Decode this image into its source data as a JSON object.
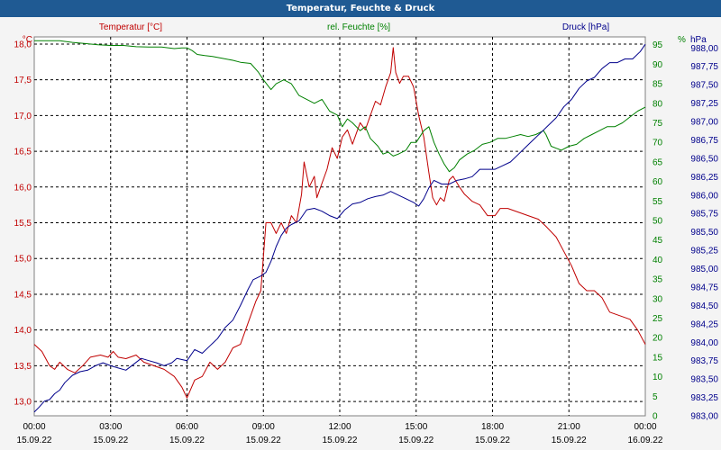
{
  "title": "Temperatur, Feuchte & Druck",
  "chart_data": {
    "type": "line",
    "title": "Temperatur, Feuchte & Druck",
    "x_ticks": [
      {
        "time": "00:00",
        "date": "15.09.22"
      },
      {
        "time": "03:00",
        "date": "15.09.22"
      },
      {
        "time": "06:00",
        "date": "15.09.22"
      },
      {
        "time": "09:00",
        "date": "15.09.22"
      },
      {
        "time": "12:00",
        "date": "15.09.22"
      },
      {
        "time": "15:00",
        "date": "15.09.22"
      },
      {
        "time": "18:00",
        "date": "15.09.22"
      },
      {
        "time": "21:00",
        "date": "15.09.22"
      },
      {
        "time": "00:00",
        "date": "16.09.22"
      }
    ],
    "xlim": [
      0,
      24
    ],
    "axes": {
      "temperature": {
        "unit": "°C",
        "ylim": [
          12.8,
          18.1
        ],
        "ticks": [
          "13,0",
          "13,5",
          "14,0",
          "14,5",
          "15,0",
          "15,5",
          "16,0",
          "16,5",
          "17,0",
          "17,5",
          "18,0"
        ],
        "tick_values": [
          13.0,
          13.5,
          14.0,
          14.5,
          15.0,
          15.5,
          16.0,
          16.5,
          17.0,
          17.5,
          18.0
        ]
      },
      "humidity": {
        "unit": "%",
        "ylim": [
          0,
          97
        ],
        "ticks": [
          "0",
          "5",
          "10",
          "15",
          "20",
          "25",
          "30",
          "35",
          "40",
          "45",
          "50",
          "55",
          "60",
          "65",
          "70",
          "75",
          "80",
          "85",
          "90",
          "95"
        ],
        "tick_values": [
          0,
          5,
          10,
          15,
          20,
          25,
          30,
          35,
          40,
          45,
          50,
          55,
          60,
          65,
          70,
          75,
          80,
          85,
          90,
          95
        ]
      },
      "pressure": {
        "unit": "hPa",
        "ylim": [
          983.0,
          988.15
        ],
        "ticks": [
          "983,00",
          "983,25",
          "983,50",
          "983,75",
          "984,00",
          "984,25",
          "984,50",
          "984,75",
          "985,00",
          "985,25",
          "985,50",
          "985,75",
          "986,00",
          "986,25",
          "986,50",
          "986,75",
          "987,00",
          "987,25",
          "987,50",
          "987,75",
          "988,00"
        ],
        "tick_values": [
          983.0,
          983.25,
          983.5,
          983.75,
          984.0,
          984.25,
          984.5,
          984.75,
          985.0,
          985.25,
          985.5,
          985.75,
          986.0,
          986.25,
          986.5,
          986.75,
          987.0,
          987.25,
          987.5,
          987.75,
          988.0
        ]
      }
    },
    "series": [
      {
        "name": "Temperatur [°C]",
        "axis": "temperature",
        "color": "#c00000",
        "points": [
          [
            0,
            13.8
          ],
          [
            0.3,
            13.7
          ],
          [
            0.6,
            13.5
          ],
          [
            0.8,
            13.45
          ],
          [
            1.0,
            13.55
          ],
          [
            1.3,
            13.45
          ],
          [
            1.6,
            13.4
          ],
          [
            1.9,
            13.5
          ],
          [
            2.2,
            13.62
          ],
          [
            2.6,
            13.65
          ],
          [
            2.9,
            13.62
          ],
          [
            3.1,
            13.7
          ],
          [
            3.3,
            13.62
          ],
          [
            3.6,
            13.6
          ],
          [
            4.0,
            13.65
          ],
          [
            4.3,
            13.55
          ],
          [
            4.7,
            13.5
          ],
          [
            5.1,
            13.45
          ],
          [
            5.5,
            13.35
          ],
          [
            5.8,
            13.2
          ],
          [
            6.0,
            13.05
          ],
          [
            6.3,
            13.3
          ],
          [
            6.6,
            13.35
          ],
          [
            6.9,
            13.55
          ],
          [
            7.2,
            13.45
          ],
          [
            7.5,
            13.55
          ],
          [
            7.8,
            13.75
          ],
          [
            8.1,
            13.8
          ],
          [
            8.4,
            14.1
          ],
          [
            8.7,
            14.4
          ],
          [
            8.9,
            14.55
          ],
          [
            9.1,
            15.5
          ],
          [
            9.3,
            15.5
          ],
          [
            9.5,
            15.35
          ],
          [
            9.7,
            15.5
          ],
          [
            9.9,
            15.35
          ],
          [
            10.1,
            15.6
          ],
          [
            10.3,
            15.5
          ],
          [
            10.5,
            15.9
          ],
          [
            10.6,
            16.35
          ],
          [
            10.8,
            16.0
          ],
          [
            11.0,
            16.15
          ],
          [
            11.1,
            15.85
          ],
          [
            11.3,
            16.05
          ],
          [
            11.5,
            16.25
          ],
          [
            11.7,
            16.55
          ],
          [
            11.9,
            16.4
          ],
          [
            12.1,
            16.7
          ],
          [
            12.3,
            16.8
          ],
          [
            12.5,
            16.6
          ],
          [
            12.8,
            16.9
          ],
          [
            13.0,
            16.8
          ],
          [
            13.2,
            17.0
          ],
          [
            13.4,
            17.2
          ],
          [
            13.6,
            17.15
          ],
          [
            13.8,
            17.4
          ],
          [
            14.0,
            17.6
          ],
          [
            14.1,
            17.95
          ],
          [
            14.2,
            17.6
          ],
          [
            14.35,
            17.45
          ],
          [
            14.5,
            17.55
          ],
          [
            14.7,
            17.55
          ],
          [
            14.9,
            17.4
          ],
          [
            15.1,
            17.0
          ],
          [
            15.3,
            16.7
          ],
          [
            15.5,
            16.2
          ],
          [
            15.65,
            15.85
          ],
          [
            15.8,
            15.75
          ],
          [
            15.95,
            15.85
          ],
          [
            16.1,
            15.8
          ],
          [
            16.3,
            16.1
          ],
          [
            16.45,
            16.15
          ],
          [
            16.7,
            16.0
          ],
          [
            16.9,
            15.9
          ],
          [
            17.2,
            15.8
          ],
          [
            17.5,
            15.75
          ],
          [
            17.8,
            15.6
          ],
          [
            18.1,
            15.6
          ],
          [
            18.3,
            15.7
          ],
          [
            18.6,
            15.7
          ],
          [
            19.0,
            15.65
          ],
          [
            19.4,
            15.6
          ],
          [
            19.8,
            15.55
          ],
          [
            20.1,
            15.45
          ],
          [
            20.5,
            15.3
          ],
          [
            20.8,
            15.1
          ],
          [
            21.1,
            14.9
          ],
          [
            21.4,
            14.65
          ],
          [
            21.7,
            14.55
          ],
          [
            22.0,
            14.55
          ],
          [
            22.3,
            14.45
          ],
          [
            22.6,
            14.25
          ],
          [
            23.0,
            14.2
          ],
          [
            23.4,
            14.15
          ],
          [
            23.7,
            14.0
          ],
          [
            24.0,
            13.8
          ]
        ]
      },
      {
        "name": "rel. Feuchte [%]",
        "axis": "humidity",
        "color": "#008000",
        "points": [
          [
            0,
            96
          ],
          [
            0.5,
            96
          ],
          [
            1.0,
            96
          ],
          [
            1.5,
            95.6
          ],
          [
            2.0,
            95.3
          ],
          [
            2.5,
            95
          ],
          [
            3.0,
            94.8
          ],
          [
            3.5,
            94.8
          ],
          [
            4.0,
            94.5
          ],
          [
            4.5,
            94.4
          ],
          [
            5.0,
            94.4
          ],
          [
            5.5,
            94
          ],
          [
            5.8,
            94.2
          ],
          [
            6.0,
            94.2
          ],
          [
            6.2,
            93.5
          ],
          [
            6.4,
            92.5
          ],
          [
            6.7,
            92.2
          ],
          [
            7.0,
            92
          ],
          [
            7.4,
            91.5
          ],
          [
            7.8,
            91
          ],
          [
            8.1,
            90.5
          ],
          [
            8.5,
            90.2
          ],
          [
            8.8,
            88
          ],
          [
            9.0,
            86
          ],
          [
            9.3,
            83.5
          ],
          [
            9.5,
            85
          ],
          [
            9.8,
            86
          ],
          [
            10.1,
            85
          ],
          [
            10.4,
            82
          ],
          [
            10.7,
            81
          ],
          [
            11.0,
            80
          ],
          [
            11.3,
            81
          ],
          [
            11.6,
            78
          ],
          [
            11.9,
            77
          ],
          [
            12.1,
            74
          ],
          [
            12.3,
            76
          ],
          [
            12.5,
            75
          ],
          [
            12.8,
            73
          ],
          [
            13.0,
            74
          ],
          [
            13.2,
            71
          ],
          [
            13.5,
            69
          ],
          [
            13.7,
            67
          ],
          [
            13.9,
            67.5
          ],
          [
            14.1,
            66.5
          ],
          [
            14.3,
            67
          ],
          [
            14.6,
            68
          ],
          [
            14.8,
            70
          ],
          [
            15.0,
            70
          ],
          [
            15.3,
            73
          ],
          [
            15.5,
            74
          ],
          [
            15.7,
            70
          ],
          [
            15.9,
            67
          ],
          [
            16.1,
            64.5
          ],
          [
            16.3,
            62.5
          ],
          [
            16.5,
            63.5
          ],
          [
            16.7,
            65.5
          ],
          [
            17.0,
            67
          ],
          [
            17.3,
            68
          ],
          [
            17.6,
            69.5
          ],
          [
            17.9,
            70
          ],
          [
            18.2,
            71
          ],
          [
            18.5,
            71
          ],
          [
            18.8,
            71.5
          ],
          [
            19.1,
            72
          ],
          [
            19.4,
            71.5
          ],
          [
            19.7,
            72
          ],
          [
            20.0,
            73
          ],
          [
            20.1,
            72
          ],
          [
            20.3,
            69
          ],
          [
            20.5,
            68.5
          ],
          [
            20.7,
            68
          ],
          [
            21.0,
            69
          ],
          [
            21.3,
            69.5
          ],
          [
            21.6,
            71
          ],
          [
            21.9,
            72
          ],
          [
            22.2,
            73
          ],
          [
            22.5,
            74
          ],
          [
            22.8,
            74
          ],
          [
            23.1,
            75
          ],
          [
            23.4,
            76.5
          ],
          [
            23.7,
            78
          ],
          [
            24.0,
            79
          ]
        ]
      },
      {
        "name": "Druck [hPa]",
        "axis": "pressure",
        "color": "#00008b",
        "points": [
          [
            0,
            983.05
          ],
          [
            0.2,
            983.12
          ],
          [
            0.4,
            983.2
          ],
          [
            0.6,
            983.22
          ],
          [
            0.8,
            983.3
          ],
          [
            1.0,
            983.35
          ],
          [
            1.2,
            983.45
          ],
          [
            1.5,
            983.55
          ],
          [
            1.8,
            983.6
          ],
          [
            2.1,
            983.62
          ],
          [
            2.4,
            983.68
          ],
          [
            2.7,
            983.72
          ],
          [
            3.0,
            983.68
          ],
          [
            3.3,
            983.65
          ],
          [
            3.6,
            983.62
          ],
          [
            3.9,
            983.7
          ],
          [
            4.2,
            983.78
          ],
          [
            4.5,
            983.75
          ],
          [
            4.8,
            983.72
          ],
          [
            5.1,
            983.68
          ],
          [
            5.4,
            983.72
          ],
          [
            5.6,
            983.78
          ],
          [
            6.0,
            983.75
          ],
          [
            6.3,
            983.9
          ],
          [
            6.6,
            983.85
          ],
          [
            6.9,
            983.95
          ],
          [
            7.2,
            984.05
          ],
          [
            7.5,
            984.2
          ],
          [
            7.8,
            984.3
          ],
          [
            8.1,
            984.5
          ],
          [
            8.4,
            984.72
          ],
          [
            8.6,
            984.85
          ],
          [
            8.9,
            984.9
          ],
          [
            9.1,
            984.95
          ],
          [
            9.3,
            985.1
          ],
          [
            9.5,
            985.3
          ],
          [
            9.7,
            985.45
          ],
          [
            9.9,
            985.55
          ],
          [
            10.1,
            985.6
          ],
          [
            10.4,
            985.65
          ],
          [
            10.7,
            985.8
          ],
          [
            11.0,
            985.82
          ],
          [
            11.3,
            985.78
          ],
          [
            11.6,
            985.72
          ],
          [
            11.9,
            985.68
          ],
          [
            12.2,
            985.8
          ],
          [
            12.5,
            985.88
          ],
          [
            12.8,
            985.9
          ],
          [
            13.1,
            985.95
          ],
          [
            13.4,
            985.98
          ],
          [
            13.7,
            986.0
          ],
          [
            14.0,
            986.05
          ],
          [
            14.3,
            986.0
          ],
          [
            14.6,
            985.95
          ],
          [
            14.9,
            985.9
          ],
          [
            15.1,
            985.85
          ],
          [
            15.3,
            985.95
          ],
          [
            15.5,
            986.1
          ],
          [
            15.7,
            986.2
          ],
          [
            16.0,
            986.15
          ],
          [
            16.3,
            986.15
          ],
          [
            16.6,
            986.2
          ],
          [
            16.9,
            986.22
          ],
          [
            17.2,
            986.25
          ],
          [
            17.5,
            986.35
          ],
          [
            17.8,
            986.35
          ],
          [
            18.1,
            986.35
          ],
          [
            18.4,
            986.4
          ],
          [
            18.7,
            986.45
          ],
          [
            19.0,
            986.55
          ],
          [
            19.3,
            986.65
          ],
          [
            19.6,
            986.75
          ],
          [
            19.9,
            986.85
          ],
          [
            20.2,
            986.95
          ],
          [
            20.5,
            987.05
          ],
          [
            20.8,
            987.2
          ],
          [
            21.1,
            987.3
          ],
          [
            21.4,
            987.45
          ],
          [
            21.7,
            987.55
          ],
          [
            22.0,
            987.6
          ],
          [
            22.3,
            987.72
          ],
          [
            22.6,
            987.8
          ],
          [
            22.9,
            987.8
          ],
          [
            23.2,
            987.85
          ],
          [
            23.5,
            987.85
          ],
          [
            23.8,
            987.95
          ],
          [
            24.0,
            988.05
          ]
        ]
      }
    ]
  }
}
